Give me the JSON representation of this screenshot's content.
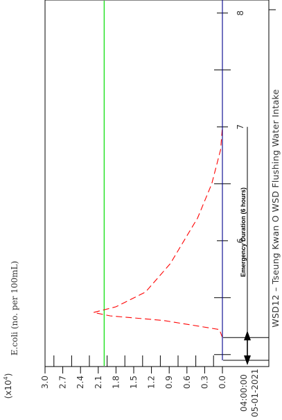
{
  "chart_data": {
    "type": "line",
    "title": "WSD12 – Tseung Kwan O WSD Flushing Water Intake",
    "ylabel": "E.coli (no. per 100mL)",
    "y_multiplier": "(x10",
    "y_multiplier_exp": "4",
    "y_multiplier_close": ")",
    "ylim": [
      0,
      3.0
    ],
    "y_ticks": [
      "0.0",
      "0.3",
      "0.6",
      "0.9",
      "1.2",
      "1.5",
      "1.8",
      "2.1",
      "2.4",
      "2.7",
      "3.0"
    ],
    "x_ticks": [
      {
        "value": 6,
        "label": "6"
      },
      {
        "value": 7,
        "label": "7"
      },
      {
        "value": 8,
        "label": "8"
      }
    ],
    "x_start": {
      "time": "04:00:00",
      "date": "05-01-2021"
    },
    "grid": false,
    "threshold": {
      "value": 2.0,
      "color": "#00dd00"
    },
    "series": [
      {
        "color": "#ff0000",
        "style": "dashed",
        "points": [
          [
            5.15,
            0.0
          ],
          [
            5.22,
            0.05
          ],
          [
            5.3,
            1.0
          ],
          [
            5.34,
            1.9
          ],
          [
            5.37,
            2.18
          ],
          [
            5.42,
            1.8
          ],
          [
            5.55,
            1.3
          ],
          [
            5.8,
            0.88
          ],
          [
            6.0,
            0.65
          ],
          [
            6.2,
            0.42
          ],
          [
            6.5,
            0.18
          ],
          [
            6.8,
            0.03
          ],
          [
            7.0,
            0.0
          ]
        ]
      },
      {
        "color": "#00008b",
        "style": "solid",
        "points": [
          [
            4.95,
            0.0
          ],
          [
            9.35,
            0.0
          ]
        ]
      }
    ],
    "annotation": {
      "text": "Emergency Duration (6 hours)",
      "start": 5.15,
      "end": 7.0
    }
  }
}
